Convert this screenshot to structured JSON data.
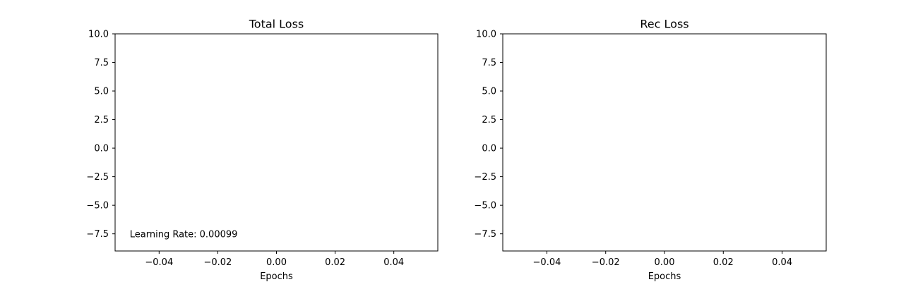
{
  "chart_data": [
    {
      "type": "line",
      "title": "Total Loss",
      "xlabel": "Epochs",
      "ylabel": "",
      "xlim": [
        -0.055,
        0.055
      ],
      "ylim": [
        -9.0,
        10.0
      ],
      "xticks": [
        -0.04,
        -0.02,
        0.0,
        0.02,
        0.04
      ],
      "xtick_labels": [
        "−0.04",
        "−0.02",
        "0.00",
        "0.02",
        "0.04"
      ],
      "yticks": [
        10.0,
        7.5,
        5.0,
        2.5,
        0.0,
        -2.5,
        -5.0,
        -7.5
      ],
      "ytick_labels": [
        "10.0",
        "7.5",
        "5.0",
        "2.5",
        "0.0",
        "−2.5",
        "−5.0",
        "−7.5"
      ],
      "grid": false,
      "series": [],
      "annotations": [
        {
          "text": "Learning Rate: 0.00099",
          "x": -0.05,
          "y": -7.8
        }
      ]
    },
    {
      "type": "line",
      "title": "Rec Loss",
      "xlabel": "Epochs",
      "ylabel": "",
      "xlim": [
        -0.055,
        0.055
      ],
      "ylim": [
        -9.0,
        10.0
      ],
      "xticks": [
        -0.04,
        -0.02,
        0.0,
        0.02,
        0.04
      ],
      "xtick_labels": [
        "−0.04",
        "−0.02",
        "0.00",
        "0.02",
        "0.04"
      ],
      "yticks": [
        10.0,
        7.5,
        5.0,
        2.5,
        0.0,
        -2.5,
        -5.0,
        -7.5
      ],
      "ytick_labels": [
        "10.0",
        "7.5",
        "5.0",
        "2.5",
        "0.0",
        "−2.5",
        "−5.0",
        "−7.5"
      ],
      "grid": false,
      "series": [],
      "annotations": []
    }
  ]
}
